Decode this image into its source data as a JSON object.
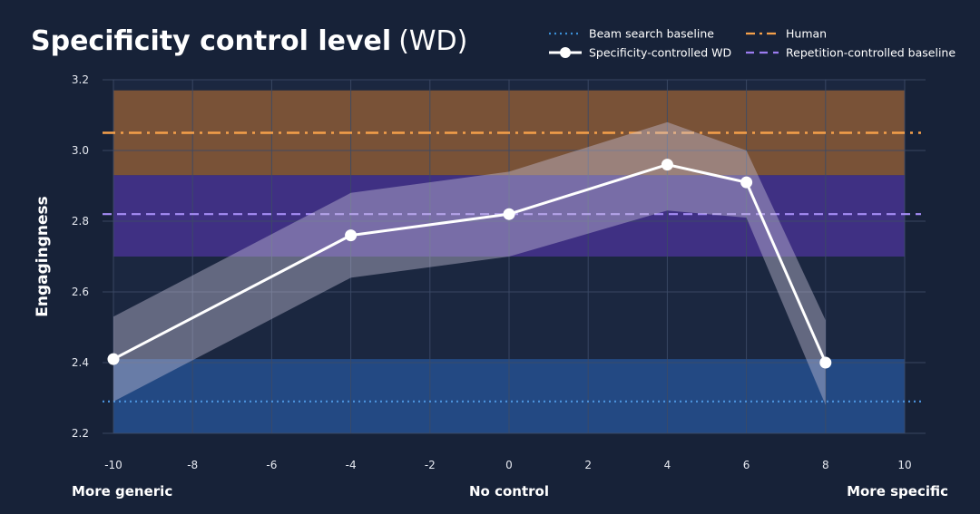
{
  "title": "Specificity control level",
  "subtitle": "(WD)",
  "legend": [
    {
      "name": "Beam search baseline",
      "style": "dotted",
      "color": "#3b8fd6"
    },
    {
      "name": "Human",
      "style": "dashdot",
      "color": "#f5a04a"
    },
    {
      "name": "Specificity-controlled WD",
      "style": "line-marker",
      "color": "#ffffff"
    },
    {
      "name": "Repetition-controlled baseline",
      "style": "dashed",
      "color": "#9b7cf0"
    }
  ],
  "bottom_labels": {
    "left": "More generic",
    "center": "No control",
    "right": "More specific"
  },
  "colors": {
    "background": "#172238",
    "plot_background": "#1b2740",
    "grid": "#3c4a66",
    "human": "#f5a04a",
    "human_band": "#8a5a36",
    "repetition": "#a58cf5",
    "repetition_band": "#45328f",
    "beam": "#4a90d9",
    "beam_band": "#24508f",
    "wd_band": "#c9c3d8",
    "wd_line": "#ffffff"
  },
  "chart_data": {
    "type": "line",
    "title": "Specificity control level (WD)",
    "xlabel": "",
    "ylabel": "Engagingness",
    "xlim": [
      -10,
      10
    ],
    "ylim": [
      2.2,
      3.2
    ],
    "x_ticks": [
      -10,
      -8,
      -6,
      -4,
      -2,
      0,
      2,
      4,
      6,
      8,
      10
    ],
    "y_ticks": [
      2.2,
      2.4,
      2.6,
      2.8,
      3.0,
      3.2
    ],
    "y_tick_labels": [
      "2.2",
      "2.4",
      "2.6",
      "2.8",
      "3.0",
      "3.2"
    ],
    "grid": true,
    "legend_position": "top-right",
    "series": [
      {
        "name": "Specificity-controlled WD",
        "x": [
          -10,
          -4,
          0,
          4,
          6,
          8
        ],
        "y": [
          2.41,
          2.76,
          2.82,
          2.96,
          2.91,
          2.4
        ],
        "lower": [
          2.29,
          2.64,
          2.7,
          2.83,
          2.81,
          2.28
        ],
        "upper": [
          2.53,
          2.88,
          2.94,
          3.08,
          3.0,
          2.52
        ]
      }
    ],
    "baselines": [
      {
        "name": "Human",
        "value": 3.05,
        "lower": 2.93,
        "upper": 3.17
      },
      {
        "name": "Repetition-controlled baseline",
        "value": 2.82,
        "lower": 2.7,
        "upper": 2.93
      },
      {
        "name": "Beam search baseline",
        "value": 2.29,
        "lower": 2.2,
        "upper": 2.41
      }
    ]
  }
}
